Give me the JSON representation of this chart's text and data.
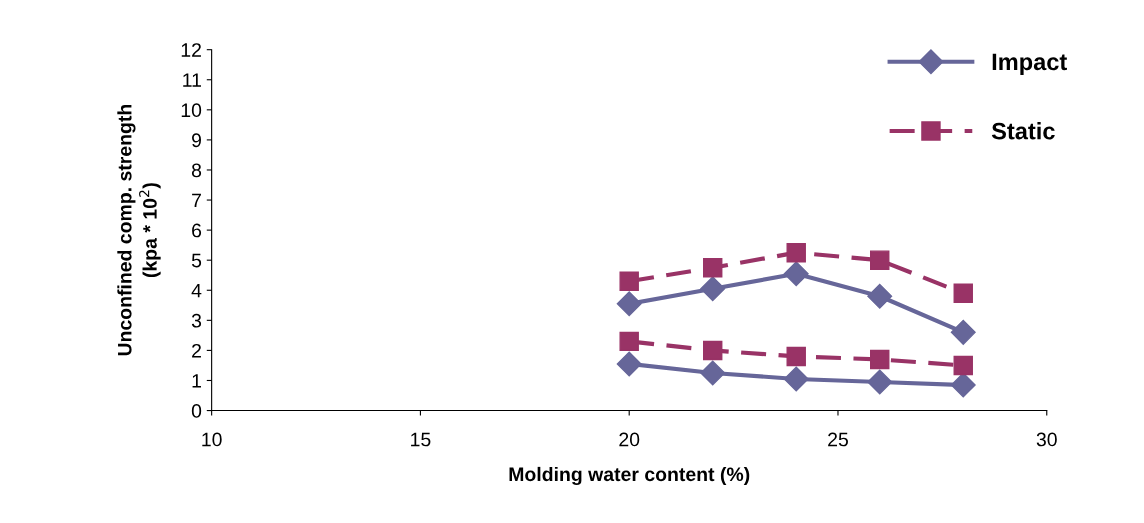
{
  "chart_data": {
    "type": "line",
    "xlabel": "Molding water content (%)",
    "ylabel": "Unconfined comp. strength\n(kpa * 10$^{2}$)",
    "xlim": [
      10,
      30
    ],
    "xticks": [
      10,
      15,
      20,
      25,
      30
    ],
    "ylim": [
      0,
      12
    ],
    "yticks": [
      0,
      1,
      2,
      3,
      4,
      5,
      6,
      7,
      8,
      9,
      10,
      11,
      12
    ],
    "grid": false,
    "legend": "top right",
    "series": [
      {
        "name": "Impact",
        "color": "#666699",
        "marker": "diamond",
        "line_style": "solid",
        "x": [
          20,
          22,
          24,
          26,
          28
        ],
        "values": [
          3.55,
          4.05,
          4.55,
          3.8,
          2.6
        ]
      },
      {
        "name": "Static",
        "color": "#993366",
        "marker": "square",
        "line_style": "dashed",
        "x": [
          20,
          22,
          24,
          26,
          28
        ],
        "values": [
          4.3,
          4.75,
          5.25,
          5.0,
          3.9
        ]
      },
      {
        "color": "#666699",
        "marker": "diamond",
        "line_style": "solid",
        "x": [
          20,
          22,
          24,
          26,
          28
        ],
        "values": [
          1.55,
          1.25,
          1.05,
          0.95,
          0.85
        ]
      },
      {
        "color": "#993366",
        "marker": "square",
        "line_style": "dashed",
        "x": [
          20,
          22,
          24,
          26,
          28
        ],
        "values": [
          2.3,
          2.0,
          1.8,
          1.7,
          1.5
        ]
      }
    ]
  }
}
